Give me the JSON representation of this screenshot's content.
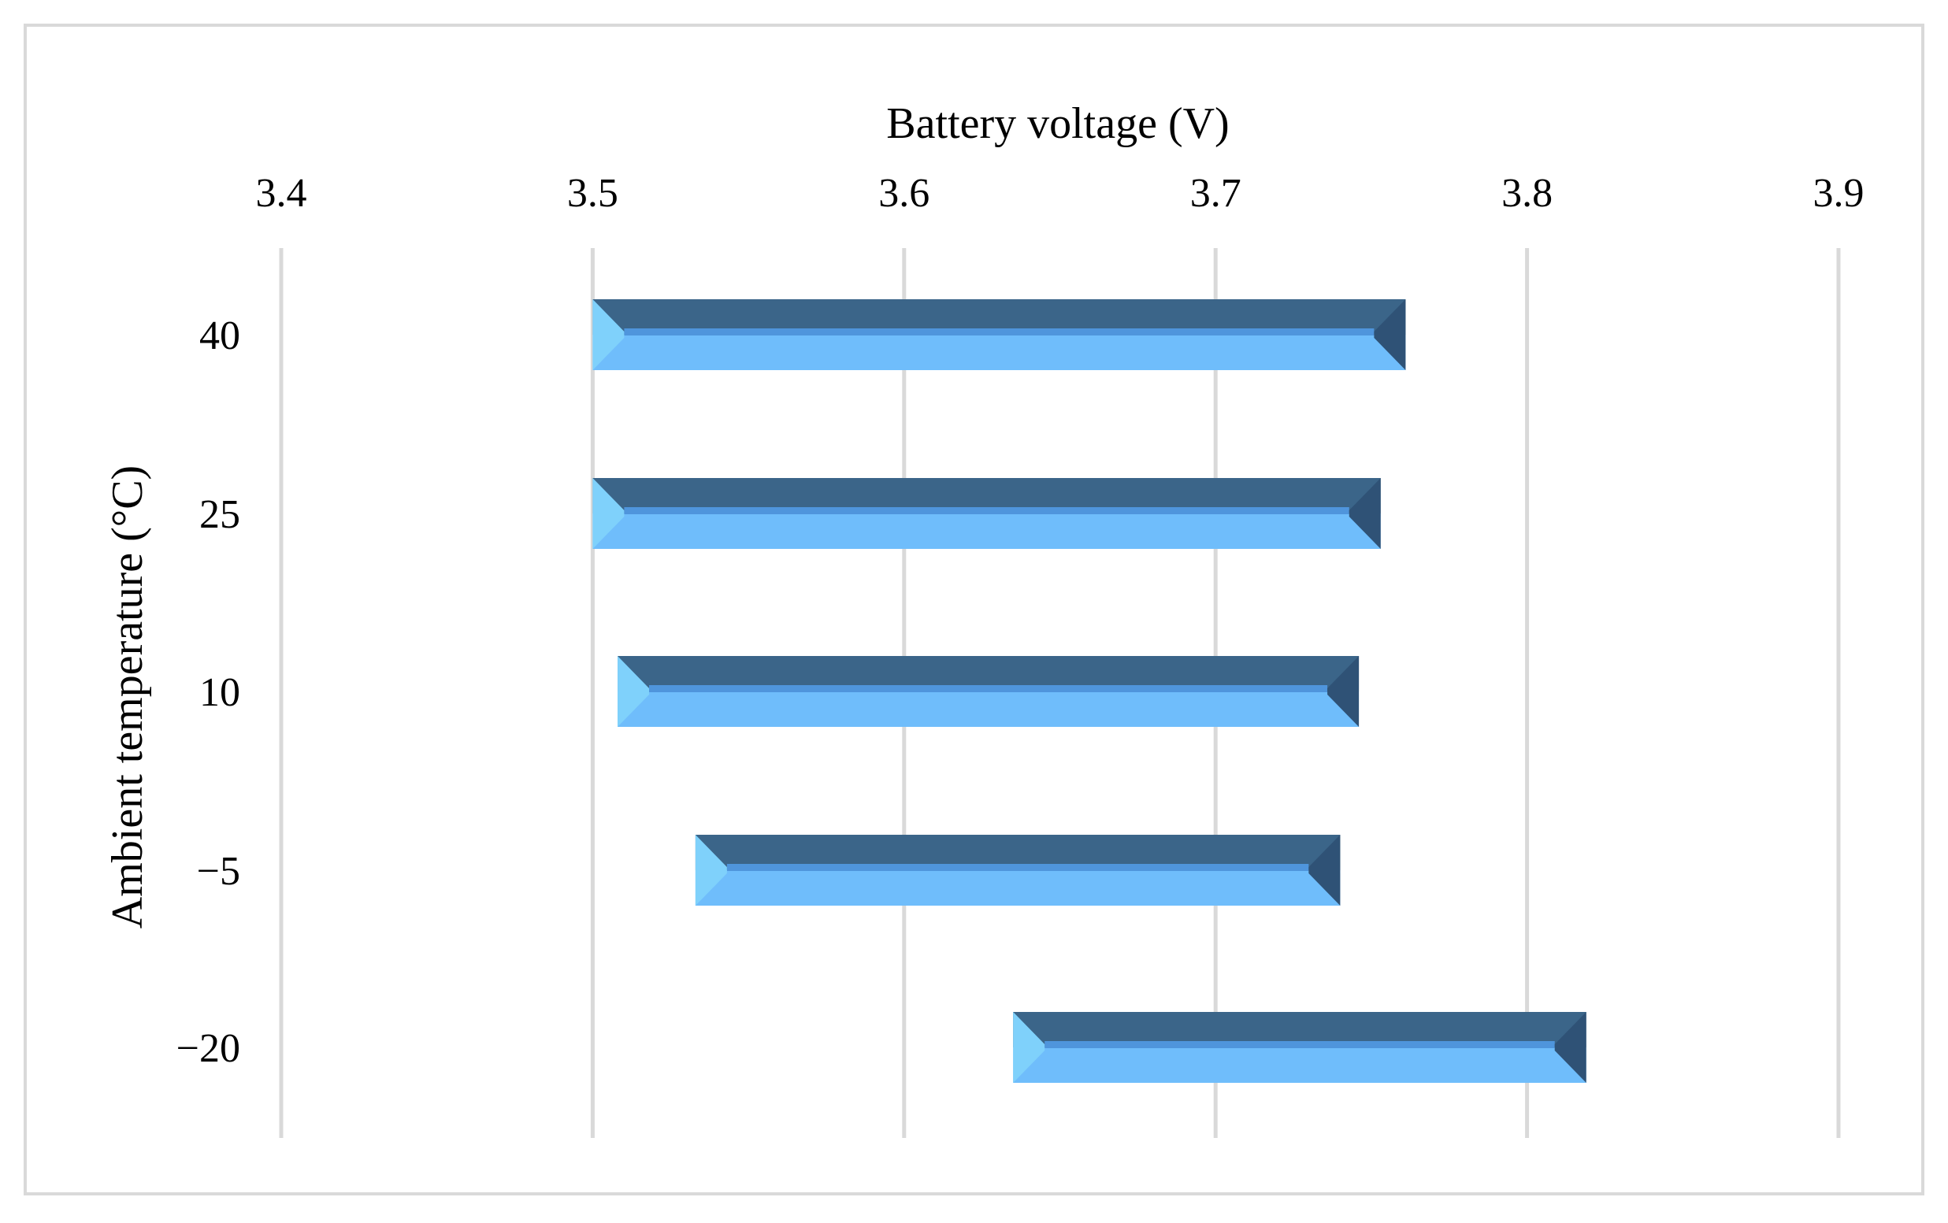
{
  "chart_data": {
    "type": "bar",
    "orientation": "horizontal",
    "style": "floating range bars (low to high) with beveled 3D effect",
    "title": "",
    "xlabel": "Battery voltage (V)",
    "ylabel": "Ambient temperature (°C)",
    "xaxis_position": "top",
    "xlim": [
      3.4,
      3.9
    ],
    "xticks": [
      "3.4",
      "3.5",
      "3.6",
      "3.7",
      "3.8",
      "3.9"
    ],
    "grid": "vertical gridlines on",
    "legend": "none",
    "categories": [
      "40",
      "25",
      "10",
      "−5",
      "−20"
    ],
    "series": [
      {
        "low": [
          3.5,
          3.5,
          3.508,
          3.533,
          3.635
        ],
        "high": [
          3.761,
          3.753,
          3.746,
          3.74,
          3.819
        ]
      }
    ],
    "colors": {
      "bar_top": "#3b6589",
      "bar_bottom": "#6fbdfb",
      "bar_mid_line": "#4f95dc",
      "bar_left_bevel": "#7fd1fb",
      "bar_right_bevel": "#2f5276",
      "grid": "#d9d9d9",
      "frame": "#d9d9d9"
    }
  }
}
